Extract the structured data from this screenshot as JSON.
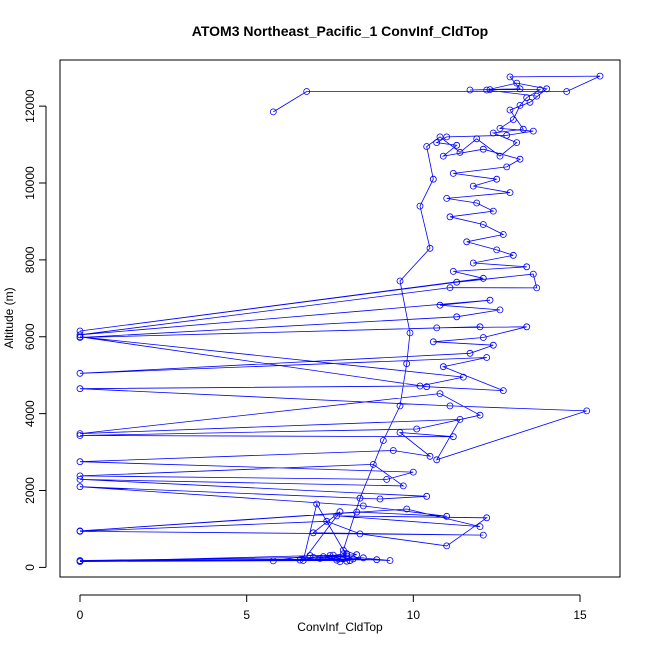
{
  "chart_data": {
    "type": "line",
    "title": "ATOM3 Northeast_Pacific_1 ConvInf_CldTop",
    "xlabel": "ConvInf_CldTop",
    "ylabel": "Altitude (m)",
    "xlim": [
      -0.6,
      16.2
    ],
    "ylim": [
      -250,
      13200
    ],
    "xticks": [
      0,
      5,
      10,
      15
    ],
    "xtick_labels": [
      "0",
      "5",
      "10",
      "15"
    ],
    "yticks": [
      0,
      2000,
      4000,
      6000,
      8000,
      10000,
      12000
    ],
    "ytick_labels": [
      "0",
      "2000",
      "4000",
      "6000",
      "8000",
      "10000",
      "12000"
    ],
    "grid": false,
    "colors": {
      "series": "#0000ff",
      "axes": "#000000",
      "background": "#ffffff"
    },
    "series": [
      {
        "points": [
          [
            5.8,
            11850
          ],
          [
            6.8,
            12380
          ],
          [
            14.6,
            12380
          ],
          [
            15.6,
            12780
          ],
          [
            12.9,
            12760
          ],
          [
            13.2,
            12450
          ],
          [
            11.7,
            12420
          ],
          [
            12.3,
            12430
          ],
          [
            13.8,
            12430
          ],
          [
            13.4,
            12220
          ],
          [
            13.2,
            12020
          ],
          [
            13.0,
            11650
          ],
          [
            12.6,
            11420
          ],
          [
            13.6,
            11350
          ],
          [
            12.8,
            11240
          ],
          [
            11.0,
            11200
          ],
          [
            10.7,
            11050
          ],
          [
            11.3,
            10980
          ],
          [
            10.9,
            10700
          ],
          [
            12.1,
            10880
          ],
          [
            13.2,
            10620
          ],
          [
            12.8,
            10420
          ],
          [
            11.2,
            10250
          ],
          [
            12.5,
            10100
          ],
          [
            11.8,
            9920
          ],
          [
            12.9,
            9750
          ],
          [
            11.0,
            9600
          ],
          [
            11.9,
            9480
          ],
          [
            12.4,
            9270
          ],
          [
            11.1,
            9120
          ],
          [
            12.1,
            8920
          ],
          [
            12.7,
            8660
          ],
          [
            11.6,
            8470
          ],
          [
            12.5,
            8260
          ],
          [
            13.0,
            8120
          ],
          [
            11.8,
            7920
          ],
          [
            13.4,
            7820
          ],
          [
            11.2,
            7700
          ],
          [
            12.1,
            7520
          ],
          [
            0,
            6150
          ],
          [
            11.3,
            7420
          ],
          [
            13.6,
            7630
          ],
          [
            13.7,
            7270
          ],
          [
            11.1,
            7280
          ],
          [
            0,
            6050
          ],
          [
            12.3,
            6950
          ],
          [
            10.8,
            6820
          ],
          [
            12.6,
            6700
          ],
          [
            11.3,
            6520
          ],
          [
            0,
            5980
          ],
          [
            12.0,
            6260
          ],
          [
            10.7,
            6230
          ],
          [
            13.4,
            6260
          ],
          [
            12.1,
            5980
          ],
          [
            10.6,
            5870
          ],
          [
            12.4,
            5780
          ],
          [
            11.7,
            5570
          ],
          [
            0,
            5050
          ],
          [
            12.2,
            5460
          ],
          [
            10.9,
            5220
          ],
          [
            12.7,
            4600
          ],
          [
            10.4,
            4700
          ],
          [
            0,
            6000
          ],
          [
            11.5,
            4950
          ],
          [
            10.2,
            4720
          ],
          [
            0,
            4650
          ],
          [
            11.1,
            4200
          ],
          [
            15.2,
            4070
          ],
          [
            10.7,
            2800
          ],
          [
            11.4,
            3850
          ],
          [
            0,
            3480
          ],
          [
            10.8,
            4520
          ],
          [
            12.0,
            3960
          ],
          [
            10.1,
            3600
          ],
          [
            0,
            3430
          ],
          [
            11.2,
            3400
          ],
          [
            9.6,
            3510
          ],
          [
            10.5,
            2890
          ],
          [
            9.4,
            3040
          ],
          [
            0,
            2750
          ],
          [
            10.0,
            2480
          ],
          [
            9.2,
            2290
          ],
          [
            0,
            2380
          ],
          [
            8.8,
            2680
          ],
          [
            9.7,
            2120
          ],
          [
            0,
            2290
          ],
          [
            10.4,
            1850
          ],
          [
            9.0,
            1780
          ],
          [
            0,
            2100
          ],
          [
            8.5,
            1600
          ],
          [
            11.0,
            1330
          ],
          [
            8.3,
            1440
          ],
          [
            0,
            950
          ],
          [
            9.8,
            1520
          ],
          [
            12.0,
            1060
          ],
          [
            7.7,
            1340
          ],
          [
            12.2,
            1290
          ],
          [
            11.0,
            560
          ],
          [
            8.4,
            870
          ],
          [
            7.4,
            1200
          ],
          [
            0,
            940
          ],
          [
            12.1,
            840
          ],
          [
            7.0,
            900
          ],
          [
            7.8,
            1450
          ],
          [
            6.7,
            180
          ],
          [
            7.1,
            1650
          ],
          [
            8.0,
            300
          ],
          [
            5.8,
            170
          ],
          [
            6.9,
            310
          ],
          [
            8.1,
            180
          ],
          [
            0,
            150
          ],
          [
            7.6,
            320
          ],
          [
            9.3,
            180
          ],
          [
            7.9,
            220
          ],
          [
            0,
            170
          ],
          [
            8.9,
            200
          ],
          [
            7.2,
            230
          ],
          [
            8.1,
            180
          ],
          [
            6.6,
            190
          ],
          [
            7.9,
            350
          ],
          [
            8.0,
            160
          ],
          [
            7.5,
            310
          ],
          [
            8.2,
            220
          ],
          [
            0,
            180
          ],
          [
            7.0,
            260
          ],
          [
            7.8,
            150
          ],
          [
            8.5,
            250
          ],
          [
            7.7,
            190
          ],
          [
            8.0,
            360
          ],
          [
            7.3,
            280
          ],
          [
            8.3,
            330
          ],
          [
            7.9,
            450
          ],
          [
            8.4,
            1800
          ],
          [
            9.1,
            3300
          ],
          [
            9.6,
            4200
          ],
          [
            9.8,
            5300
          ],
          [
            9.9,
            6100
          ],
          [
            9.6,
            7450
          ],
          [
            10.5,
            8300
          ],
          [
            10.2,
            9400
          ],
          [
            10.6,
            10100
          ],
          [
            10.4,
            10950
          ],
          [
            10.8,
            11200
          ],
          [
            11.4,
            10800
          ],
          [
            11.9,
            11150
          ],
          [
            12.6,
            10700
          ],
          [
            13.1,
            11050
          ],
          [
            12.4,
            11300
          ],
          [
            13.3,
            11400
          ],
          [
            12.9,
            11900
          ],
          [
            13.5,
            12100
          ],
          [
            14.0,
            12450
          ],
          [
            13.1,
            12600
          ],
          [
            12.2,
            12420
          ],
          [
            13.7,
            12260
          ]
        ]
      }
    ]
  }
}
